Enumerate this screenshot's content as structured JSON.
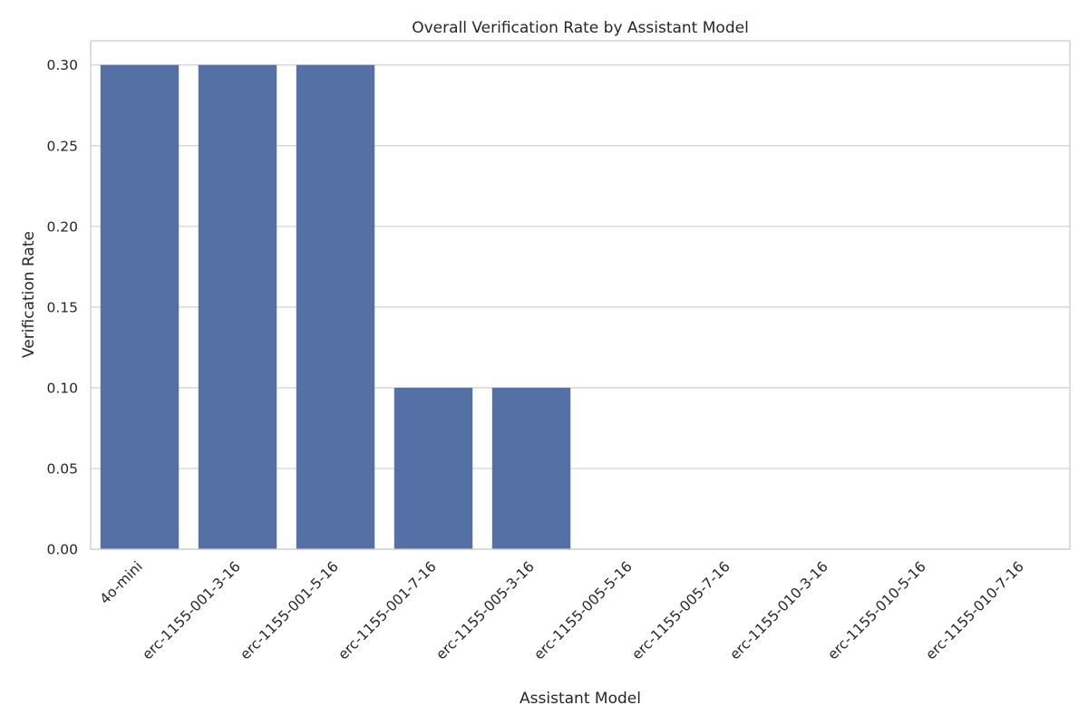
{
  "chart_data": {
    "type": "bar",
    "title": "Overall Verification Rate by Assistant Model",
    "xlabel": "Assistant Model",
    "ylabel": "Verification Rate",
    "categories": [
      "4o-mini",
      "erc-1155-001-3-16",
      "erc-1155-001-5-16",
      "erc-1155-001-7-16",
      "erc-1155-005-3-16",
      "erc-1155-005-5-16",
      "erc-1155-005-7-16",
      "erc-1155-010-3-16",
      "erc-1155-010-5-16",
      "erc-1155-010-7-16"
    ],
    "values": [
      0.3,
      0.3,
      0.3,
      0.1,
      0.1,
      0.0,
      0.0,
      0.0,
      0.0,
      0.0
    ],
    "ylim": [
      0,
      0.315
    ],
    "yticks": [
      "0.00",
      "0.05",
      "0.10",
      "0.15",
      "0.20",
      "0.25",
      "0.30"
    ],
    "grid": true,
    "bar_color": "#5470a5"
  }
}
